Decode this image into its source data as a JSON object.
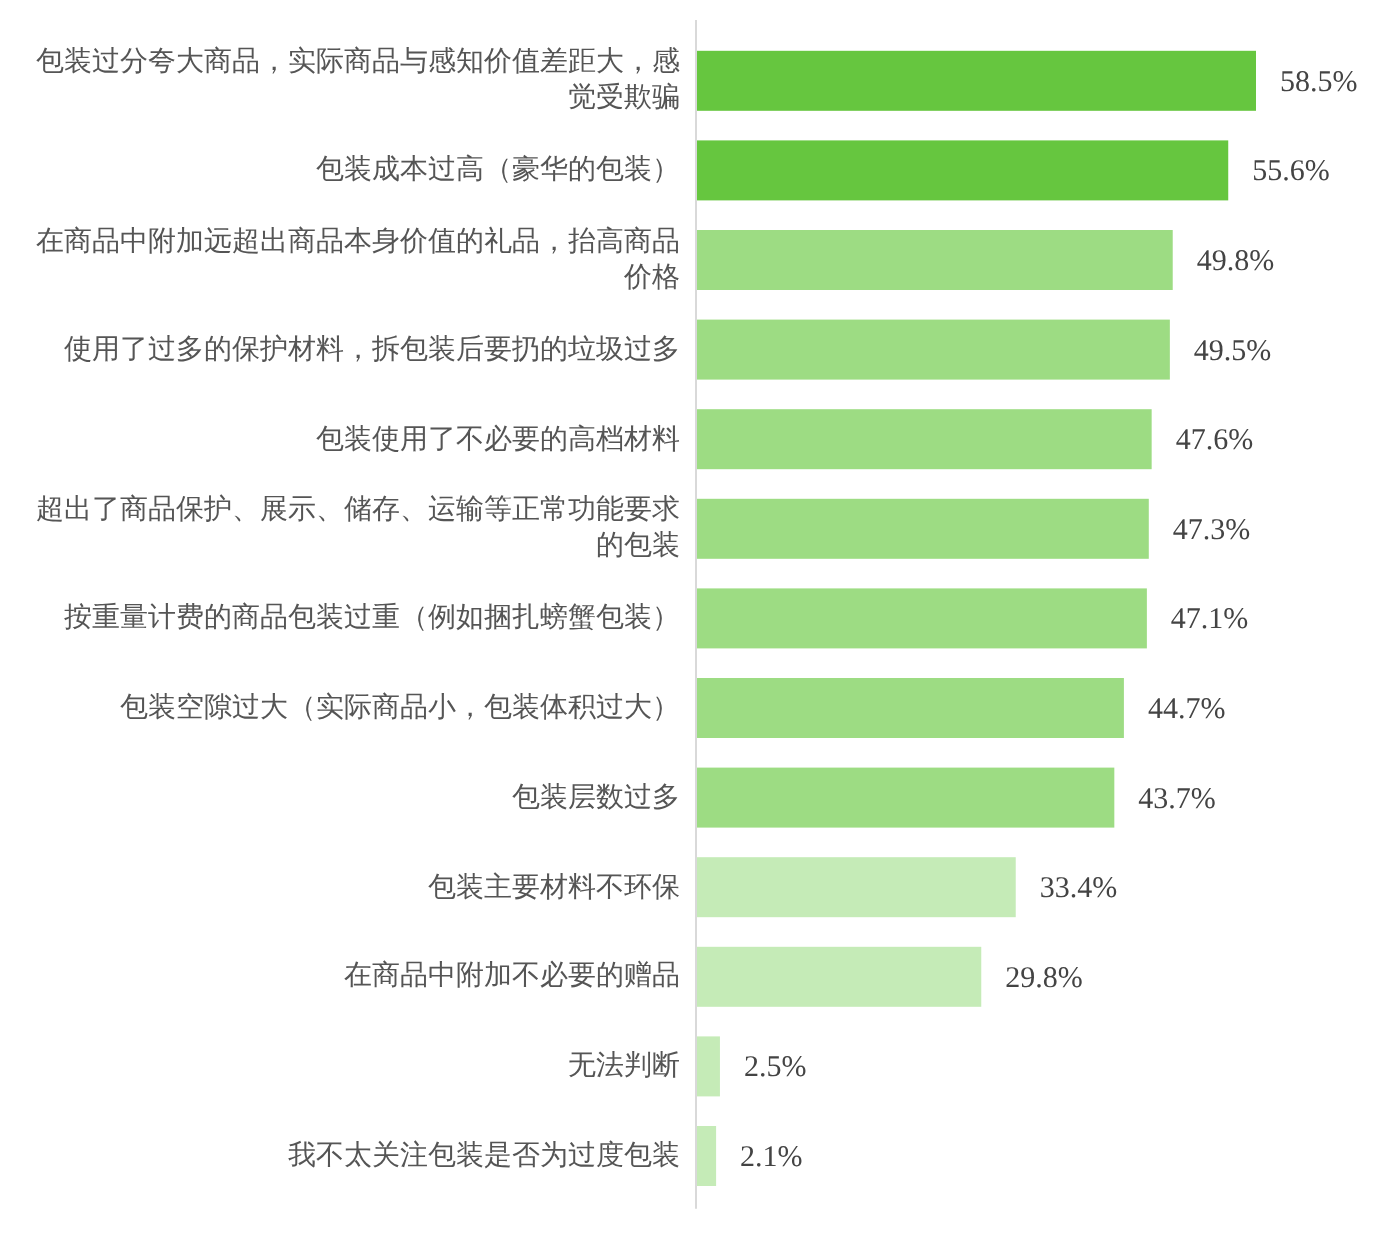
{
  "chart_data": {
    "type": "bar",
    "orientation": "horizontal",
    "categories": [
      "包装过分夸大商品，实际商品与感知价值差距大，感觉受欺骗",
      "包装成本过高（豪华的包装）",
      "在商品中附加远超出商品本身价值的礼品，抬高商品价格",
      "使用了过多的保护材料，拆包装后要扔的垃圾过多",
      "包装使用了不必要的高档材料",
      "超出了商品保护、展示、储存、运输等正常功能要求的包装",
      "按重量计费的商品包装过重（例如捆扎螃蟹包装）",
      "包装空隙过大（实际商品小，包装体积过大）",
      "包装层数过多",
      "包装主要材料不环保",
      "在商品中附加不必要的赠品",
      "无法判断",
      "我不太关注包装是否为过度包装"
    ],
    "values": [
      58.5,
      55.6,
      49.8,
      49.5,
      47.6,
      47.3,
      47.1,
      44.7,
      43.7,
      33.4,
      29.8,
      2.5,
      2.1
    ],
    "colors": [
      "#66c63f",
      "#66c63f",
      "#9ddc83",
      "#9ddc83",
      "#9ddc83",
      "#9ddc83",
      "#9ddc83",
      "#9ddc83",
      "#9ddc83",
      "#c5ebb7",
      "#c5ebb7",
      "#c5ebb7",
      "#c5ebb7"
    ],
    "value_labels": [
      "58.5%",
      "55.6%",
      "49.8%",
      "49.5%",
      "47.6%",
      "47.3%",
      "47.1%",
      "44.7%",
      "43.7%",
      "33.4%",
      "29.8%",
      "2.5%",
      "2.1%"
    ]
  }
}
